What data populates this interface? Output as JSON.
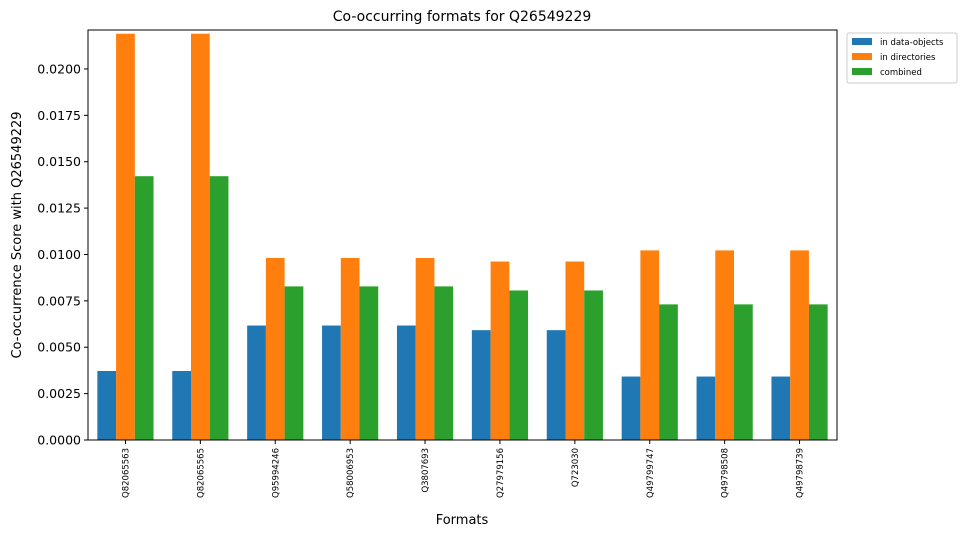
{
  "chart_data": {
    "type": "bar",
    "title": "Co-occurring formats for Q26549229",
    "xlabel": "Formats",
    "ylabel": "Co-occurrence Score with Q26549229",
    "ylim": [
      0,
      0.0221
    ],
    "yticks": [
      "0.0000",
      "0.0025",
      "0.0050",
      "0.0075",
      "0.0100",
      "0.0125",
      "0.0150",
      "0.0175",
      "0.0200"
    ],
    "categories": [
      "Q82065563",
      "Q82065565",
      "Q95994246",
      "Q58006953",
      "Q3807693",
      "Q27979156",
      "Q723030",
      "Q49799747",
      "Q49798508",
      "Q49798739"
    ],
    "series": [
      {
        "name": "in data-objects",
        "color": "#1f77b4",
        "values": [
          0.00372,
          0.00372,
          0.00617,
          0.00617,
          0.00617,
          0.00592,
          0.00592,
          0.00342,
          0.00342,
          0.00342
        ]
      },
      {
        "name": "in directories",
        "color": "#ff7f0e",
        "values": [
          0.0219,
          0.0219,
          0.00981,
          0.00981,
          0.00981,
          0.00962,
          0.00962,
          0.01022,
          0.01022,
          0.01022
        ]
      },
      {
        "name": "combined",
        "color": "#2ca02c",
        "values": [
          0.01422,
          0.01422,
          0.00828,
          0.00828,
          0.00828,
          0.00806,
          0.00806,
          0.00731,
          0.00731,
          0.00731
        ]
      }
    ],
    "legend_position": "outside-top-right",
    "grid": false
  }
}
